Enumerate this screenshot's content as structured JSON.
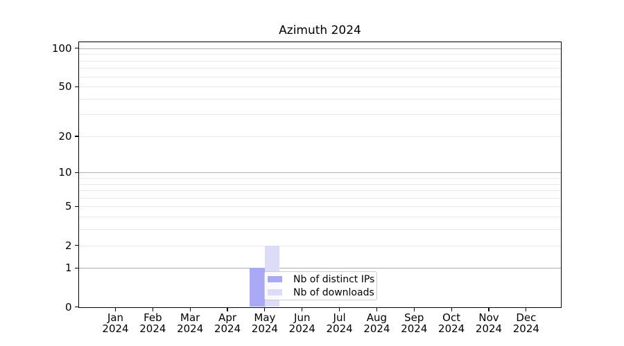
{
  "chart_data": {
    "type": "bar",
    "title": "Azimuth 2024",
    "year": "2024",
    "months": [
      "Jan",
      "Feb",
      "Mar",
      "Apr",
      "May",
      "Jun",
      "Jul",
      "Aug",
      "Sep",
      "Oct",
      "Nov",
      "Dec"
    ],
    "series": [
      {
        "name": "Nb of distinct IPs",
        "color": "#a8a8f4",
        "values": [
          0,
          0,
          0,
          0,
          1,
          0,
          0,
          0,
          0,
          0,
          0,
          0
        ]
      },
      {
        "name": "Nb of downloads",
        "color": "#dcdcf8",
        "values": [
          0,
          0,
          0,
          0,
          2,
          0,
          0,
          0,
          0,
          0,
          0,
          0
        ]
      }
    ],
    "yscale": "log1p",
    "ylim": [
      0,
      113
    ],
    "y_tick_values": [
      0,
      1,
      2,
      5,
      10,
      20,
      50,
      100
    ],
    "y_tick_labels": [
      "0",
      "1",
      "2",
      "5",
      "10",
      "20",
      "50",
      "100"
    ],
    "y_major_gridlines": [
      1,
      10,
      100
    ],
    "y_minor_gridlines": [
      2,
      3,
      4,
      5,
      6,
      7,
      8,
      9,
      20,
      30,
      40,
      50,
      60,
      70,
      80,
      90
    ],
    "grid_on": true,
    "legend_position": "lower center",
    "colors": {
      "grid_major": "#b0b0b0",
      "grid_minor": "#e9e9e9",
      "axis": "#000000",
      "background": "#ffffff"
    }
  },
  "legend": {
    "items": [
      {
        "label": "Nb of distinct IPs",
        "color": "#a8a8f4"
      },
      {
        "label": "Nb of downloads",
        "color": "#dcdcf8"
      }
    ]
  }
}
